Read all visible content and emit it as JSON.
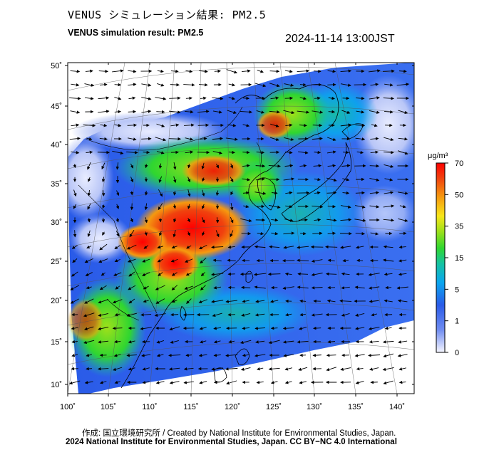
{
  "header": {
    "title_jp": "VENUS シミュレーション結果: PM2.5",
    "title_en": "VENUS simulation result: PM2.5",
    "datetime": "2024-11-14 13:00JST"
  },
  "map": {
    "lon_labels": [
      "100˚",
      "105˚",
      "110˚",
      "115˚",
      "120˚",
      "125˚",
      "130˚",
      "135˚",
      "140˚"
    ],
    "lat_labels": [
      "50˚",
      "45˚",
      "40˚",
      "35˚",
      "30˚",
      "25˚",
      "20˚",
      "15˚",
      "10˚"
    ],
    "lon_range": [
      100,
      142
    ],
    "lat_range": [
      9,
      51
    ],
    "projection": "lambert-conformal",
    "ocean_color": "#1f4fe0",
    "land_outline_color": "#000000"
  },
  "colorbar": {
    "unit": "μg/m³",
    "ticks": [
      "70",
      "50",
      "35",
      "15",
      "5",
      "1",
      "0"
    ],
    "colors": [
      "#f5f5ff",
      "#6f8cf0",
      "#2a5be8",
      "#0aa6ee",
      "#15c3a0",
      "#2fd630",
      "#9fe01a",
      "#f7e61a",
      "#f59a0f",
      "#f0420e",
      "#ff0000"
    ]
  },
  "footer": {
    "credit": "作成: 国立環境研究所 / Created by National Institute for Environmental Studies, Japan.",
    "license": "2024 National Institute for Environmental Studies, Japan. CC BY−NC 4.0 International"
  }
}
